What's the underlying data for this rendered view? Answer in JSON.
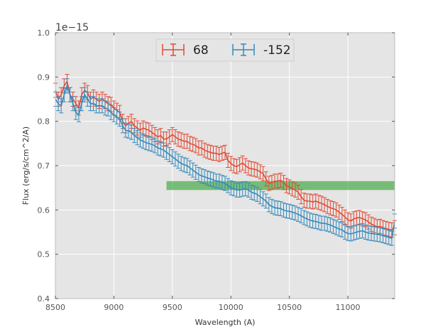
{
  "chart_data": {
    "type": "line",
    "title": "",
    "xlabel": "Wavelength (A)",
    "ylabel": "Flux (erg/s/cm^2/A)",
    "y_offset_label": "1e−15",
    "xlim": [
      8500,
      11400
    ],
    "ylim": [
      0.4,
      1.0
    ],
    "x_ticks": [
      8500,
      9000,
      9500,
      10000,
      10500,
      11000
    ],
    "y_ticks": [
      0.4,
      0.5,
      0.6,
      0.7,
      0.8,
      0.9,
      1.0
    ],
    "x_tick_labels": [
      "8500",
      "9000",
      "9500",
      "10000",
      "10500",
      "11000"
    ],
    "y_tick_labels": [
      "0.4",
      "0.5",
      "0.6",
      "0.7",
      "0.8",
      "0.9",
      "1.0"
    ],
    "grid": true,
    "legend_position": "top-center",
    "series": [
      {
        "name": "68",
        "color": "#E24A33",
        "x": [
          8500,
          8525,
          8550,
          8575,
          8600,
          8625,
          8650,
          8675,
          8700,
          8725,
          8750,
          8775,
          8800,
          8825,
          8850,
          8875,
          8900,
          8925,
          8950,
          8975,
          9000,
          9025,
          9050,
          9075,
          9100,
          9125,
          9150,
          9175,
          9200,
          9225,
          9250,
          9275,
          9300,
          9325,
          9350,
          9375,
          9400,
          9425,
          9450,
          9475,
          9500,
          9525,
          9550,
          9575,
          9600,
          9625,
          9650,
          9675,
          9700,
          9725,
          9750,
          9775,
          9800,
          9825,
          9850,
          9875,
          9900,
          9925,
          9950,
          9975,
          10000,
          10025,
          10050,
          10075,
          10100,
          10125,
          10150,
          10175,
          10200,
          10225,
          10250,
          10275,
          10300,
          10325,
          10350,
          10375,
          10400,
          10425,
          10450,
          10475,
          10500,
          10525,
          10550,
          10575,
          10600,
          10625,
          10650,
          10675,
          10700,
          10725,
          10750,
          10775,
          10800,
          10825,
          10850,
          10875,
          10900,
          10925,
          10950,
          10975,
          11000,
          11025,
          11050,
          11075,
          11100,
          11125,
          11150,
          11175,
          11200,
          11225,
          11250,
          11275,
          11300,
          11325,
          11350,
          11375,
          11400
        ],
        "y": [
          0.87,
          0.85,
          0.86,
          0.88,
          0.89,
          0.86,
          0.85,
          0.84,
          0.83,
          0.86,
          0.87,
          0.865,
          0.85,
          0.855,
          0.85,
          0.845,
          0.85,
          0.845,
          0.84,
          0.838,
          0.83,
          0.825,
          0.82,
          0.8,
          0.79,
          0.795,
          0.8,
          0.79,
          0.785,
          0.78,
          0.785,
          0.782,
          0.78,
          0.775,
          0.77,
          0.765,
          0.768,
          0.76,
          0.76,
          0.765,
          0.77,
          0.765,
          0.76,
          0.758,
          0.755,
          0.755,
          0.75,
          0.748,
          0.745,
          0.74,
          0.74,
          0.735,
          0.732,
          0.73,
          0.728,
          0.728,
          0.725,
          0.728,
          0.73,
          0.712,
          0.705,
          0.7,
          0.698,
          0.702,
          0.706,
          0.7,
          0.695,
          0.693,
          0.692,
          0.69,
          0.686,
          0.682,
          0.67,
          0.66,
          0.662,
          0.665,
          0.665,
          0.667,
          0.662,
          0.655,
          0.652,
          0.648,
          0.645,
          0.64,
          0.63,
          0.622,
          0.62,
          0.62,
          0.618,
          0.62,
          0.617,
          0.615,
          0.612,
          0.608,
          0.605,
          0.603,
          0.6,
          0.595,
          0.59,
          0.584,
          0.578,
          0.575,
          0.58,
          0.582,
          0.583,
          0.58,
          0.578,
          0.573,
          0.568,
          0.565,
          0.562,
          0.563,
          0.56,
          0.558,
          0.556,
          0.555,
          0.56
        ],
        "err": 0.016
      },
      {
        "name": "-152",
        "color": "#348ABD",
        "x": [
          8500,
          8525,
          8550,
          8575,
          8600,
          8625,
          8650,
          8675,
          8700,
          8725,
          8750,
          8775,
          8800,
          8825,
          8850,
          8875,
          8900,
          8925,
          8950,
          8975,
          9000,
          9025,
          9050,
          9075,
          9100,
          9125,
          9150,
          9175,
          9200,
          9225,
          9250,
          9275,
          9300,
          9325,
          9350,
          9375,
          9400,
          9425,
          9450,
          9475,
          9500,
          9525,
          9550,
          9575,
          9600,
          9625,
          9650,
          9675,
          9700,
          9725,
          9750,
          9775,
          9800,
          9825,
          9850,
          9875,
          9900,
          9925,
          9950,
          9975,
          10000,
          10025,
          10050,
          10075,
          10100,
          10125,
          10150,
          10175,
          10200,
          10225,
          10250,
          10275,
          10300,
          10325,
          10350,
          10375,
          10400,
          10425,
          10450,
          10475,
          10500,
          10525,
          10550,
          10575,
          10600,
          10625,
          10650,
          10675,
          10700,
          10725,
          10750,
          10775,
          10800,
          10825,
          10850,
          10875,
          10900,
          10925,
          10950,
          10975,
          11000,
          11025,
          11050,
          11075,
          11100,
          11125,
          11150,
          11175,
          11200,
          11225,
          11250,
          11275,
          11300,
          11325,
          11350,
          11375,
          11400
        ],
        "y": [
          0.85,
          0.84,
          0.835,
          0.86,
          0.88,
          0.86,
          0.84,
          0.82,
          0.815,
          0.84,
          0.86,
          0.85,
          0.84,
          0.84,
          0.835,
          0.835,
          0.835,
          0.83,
          0.828,
          0.82,
          0.815,
          0.81,
          0.805,
          0.79,
          0.78,
          0.778,
          0.775,
          0.768,
          0.763,
          0.758,
          0.755,
          0.752,
          0.75,
          0.748,
          0.745,
          0.74,
          0.738,
          0.735,
          0.73,
          0.725,
          0.72,
          0.715,
          0.71,
          0.705,
          0.702,
          0.7,
          0.695,
          0.69,
          0.685,
          0.68,
          0.677,
          0.675,
          0.672,
          0.67,
          0.668,
          0.665,
          0.665,
          0.662,
          0.66,
          0.655,
          0.65,
          0.648,
          0.645,
          0.645,
          0.647,
          0.648,
          0.645,
          0.64,
          0.638,
          0.635,
          0.63,
          0.625,
          0.62,
          0.612,
          0.608,
          0.605,
          0.604,
          0.603,
          0.6,
          0.598,
          0.597,
          0.595,
          0.593,
          0.59,
          0.587,
          0.583,
          0.58,
          0.577,
          0.575,
          0.574,
          0.572,
          0.57,
          0.57,
          0.568,
          0.566,
          0.563,
          0.56,
          0.557,
          0.555,
          0.55,
          0.547,
          0.546,
          0.548,
          0.55,
          0.552,
          0.553,
          0.55,
          0.548,
          0.547,
          0.546,
          0.545,
          0.544,
          0.542,
          0.54,
          0.538,
          0.536,
          0.575
        ],
        "err": 0.016
      }
    ],
    "band": {
      "name": "band",
      "color": "#2ca02c",
      "x_range": [
        9450,
        11400
      ],
      "y_range": [
        0.645,
        0.665
      ]
    }
  }
}
